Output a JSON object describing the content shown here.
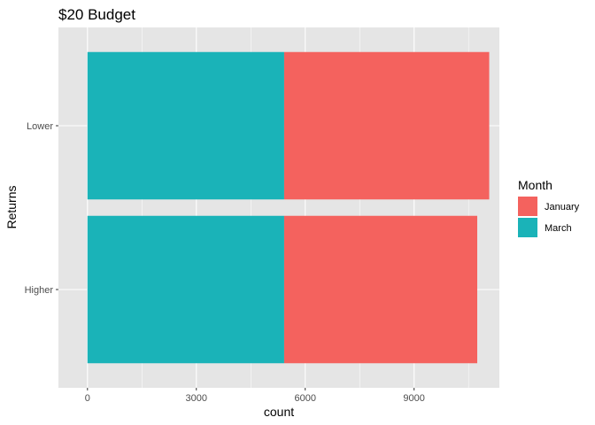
{
  "chart_data": {
    "type": "bar",
    "orientation": "horizontal",
    "stacked": true,
    "title": "$20 Budget",
    "xlabel": "count",
    "ylabel": "Returns",
    "categories": [
      "Higher",
      "Lower"
    ],
    "series": [
      {
        "name": "March",
        "values": [
          5420,
          5420
        ],
        "color": "#1ab3b8"
      },
      {
        "name": "January",
        "values": [
          5320,
          5650
        ],
        "color": "#f4625e"
      }
    ],
    "xlim": [
      -800,
      11350
    ],
    "x_ticks": [
      0,
      3000,
      6000,
      9000
    ],
    "x_tick_labels": [
      "0",
      "3000",
      "6000",
      "9000"
    ],
    "grid": true,
    "panel_background": "#e5e5e5",
    "grid_color": "#ffffff",
    "legend": {
      "title": "Month",
      "placement": "right",
      "entries": [
        "January",
        "March"
      ]
    }
  }
}
